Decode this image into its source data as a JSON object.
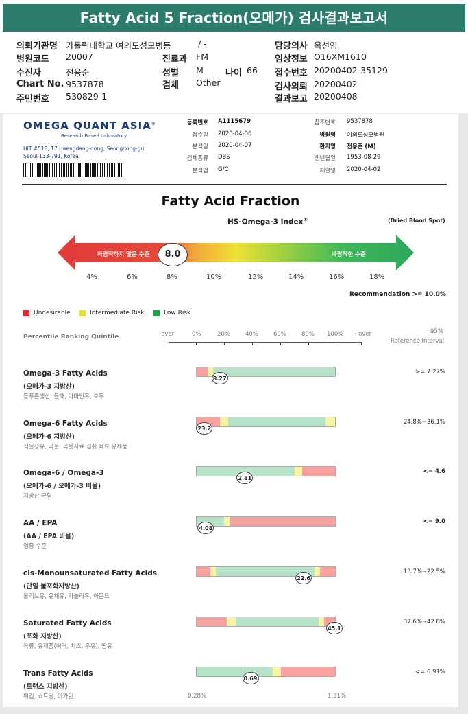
{
  "report_title": "Fatty Acid 5 Fraction(오메가) 검사결과보고서",
  "info_left": [
    {
      "label": "의뢰기관명",
      "value": "가톨릭대학교 여의도성모병동"
    },
    {
      "label": "병원코드",
      "value": "20007"
    },
    {
      "label": "수진자",
      "value": "전용준"
    },
    {
      "label": "Chart No.",
      "value": "9537878"
    },
    {
      "label": "주민번호",
      "value": "530829-1"
    }
  ],
  "info_mid": [
    {
      "label": "",
      "value": "/ -"
    },
    {
      "label": "진료과",
      "value": "FM"
    },
    {
      "label": "성별",
      "value": "M"
    },
    {
      "label": "검체",
      "value": "Other"
    }
  ],
  "info_age": {
    "label": "나이",
    "value": "66"
  },
  "info_right": [
    {
      "label": "담당의사",
      "value": "옥선영"
    },
    {
      "label": "임상정보",
      "value": "O16XM1610"
    },
    {
      "label": "접수번호",
      "value": "20200402-35129"
    },
    {
      "label": "검사의뢰",
      "value": "20200402"
    },
    {
      "label": "결과보고",
      "value": "20200408"
    }
  ],
  "lab": {
    "logo": "OMEGA QUANT ASIA",
    "logo_mark": "®",
    "tagline": "Research Based Laboratory",
    "address_line1": "HIT #518, 17 Haengdang-dong, Seongdong-gu,",
    "address_line2": "Seoul 133-791, Korea."
  },
  "meta_mid": [
    {
      "label": "등록번호",
      "value": "A1115679",
      "bold": true
    },
    {
      "label": "접수일",
      "value": "2020-04-06"
    },
    {
      "label": "분석일",
      "value": "2020-04-07"
    },
    {
      "label": "검체종류",
      "value": "DBS"
    },
    {
      "label": "분석법",
      "value": "G/C"
    }
  ],
  "meta_right": [
    {
      "label": "참조번호",
      "value": "9537878"
    },
    {
      "label": "병원명",
      "value": "여의도성모병원",
      "bold": true
    },
    {
      "label": "환자명",
      "value": "전용준 (M)",
      "bold": true
    },
    {
      "label": "생년월일",
      "value": "1953-08-29"
    },
    {
      "label": "채혈일",
      "value": "2020-04-02"
    }
  ],
  "fatty_acid_title": "Fatty Acid Fraction",
  "index_title": "HS-Omega-3 Index",
  "index_sup": "®",
  "sample_type": "(Dried Blood Spot)",
  "index_value": "8.0",
  "index_value_num": 8.0,
  "arrow_left_label": "바람직하지 않은 수준",
  "arrow_right_label": "바람직한 수준",
  "index_axis": [
    "4%",
    "6%",
    "8%",
    "10%",
    "12%",
    "14%",
    "16%",
    "18%"
  ],
  "recommendation": "Recommendation  >= 10.0%",
  "legend": [
    {
      "label": "Undesirable",
      "color": "#e02a2a"
    },
    {
      "label": "Intermediate Risk",
      "color": "#e8e03a"
    },
    {
      "label": "Low Risk",
      "color": "#22a34a"
    }
  ],
  "percentile_label": "Percentile Ranking Quintile",
  "scale_labels": [
    "-over",
    "0%",
    "20%",
    "40%",
    "60%",
    "80%",
    "100%",
    "+over"
  ],
  "ref_header_1": "95%",
  "ref_header_2": "Reference Interval",
  "colors": {
    "red": "#f7a1a1",
    "yellow": "#f8f4a6",
    "green": "#b6e2c8",
    "title_bg": "#2c7c6c"
  },
  "rows": [
    {
      "title": "Omega-3 Fatty Acids",
      "sub": "(오메가-3 지방산)",
      "food": "등푸른생선, 들깨, 아마인유, 호두",
      "value": "8.27",
      "ref": ">= 7.27%",
      "ref_bold": false,
      "segments": [
        [
          "red",
          8.5
        ],
        [
          "yellow",
          3.5
        ],
        [
          "green",
          88
        ]
      ],
      "pos": 17
    },
    {
      "title": "Omega-6 Fatty Acids",
      "sub": "(오메가-6 지방산)",
      "food": "식물성유, 곡물, 곡물사료 섭취 육류 유제품",
      "value": "23.2",
      "ref": "24.8%~36.1%",
      "ref_bold": false,
      "segments": [
        [
          "red",
          17
        ],
        [
          "yellow",
          6
        ],
        [
          "green",
          70
        ],
        [
          "yellow",
          7
        ]
      ],
      "pos": 6
    },
    {
      "title": "Omega-6 / Omega-3",
      "sub": "(오메가-6 / 오메가-3 비율)",
      "food": "지방산 균형",
      "value": "2.81",
      "ref": "<= 4.6",
      "ref_bold": true,
      "segments": [
        [
          "green",
          71
        ],
        [
          "yellow",
          5
        ],
        [
          "red",
          24
        ]
      ],
      "pos": 35
    },
    {
      "title": "AA / EPA",
      "sub": "(AA / EPA 비율)",
      "food": "염증 수준",
      "value": "4.08",
      "ref": "<= 9.0",
      "ref_bold": true,
      "segments": [
        [
          "green",
          20
        ],
        [
          "yellow",
          4
        ],
        [
          "red",
          76
        ]
      ],
      "pos": 7
    },
    {
      "title": "cis-Monounsaturated Fatty Acids",
      "sub": "(단일 불포화지방산)",
      "food": "올리브유, 유채유, 카놀라유, 아몬드",
      "value": "22.6",
      "ref": "13.7%~22.5%",
      "ref_bold": false,
      "segments": [
        [
          "red",
          10
        ],
        [
          "yellow",
          4
        ],
        [
          "green",
          71
        ],
        [
          "yellow",
          4
        ],
        [
          "red",
          11
        ]
      ],
      "pos": 77
    },
    {
      "title": "Saturated Fatty Acids",
      "sub": "(포화 지방산)",
      "food": "육류, 유제품(버터, 치즈, 우유), 팜유",
      "value": "45.1",
      "ref": "37.6%~42.8%",
      "ref_bold": false,
      "segments": [
        [
          "red",
          22
        ],
        [
          "yellow",
          6
        ],
        [
          "green",
          60
        ],
        [
          "yellow",
          4
        ],
        [
          "red",
          8
        ]
      ],
      "pos": 99
    },
    {
      "title": "Trans Fatty Acids",
      "sub": "(트랜스 지방산)",
      "food": "튀김, 쇼트닝, 마가린",
      "value": "0.69",
      "ref": "<= 0.91%",
      "ref_bold": false,
      "segments": [
        [
          "green",
          55
        ],
        [
          "yellow",
          6
        ],
        [
          "red",
          39
        ]
      ],
      "pos": 39
    }
  ],
  "bottom_left": "0.28%",
  "bottom_right": "1.31%"
}
